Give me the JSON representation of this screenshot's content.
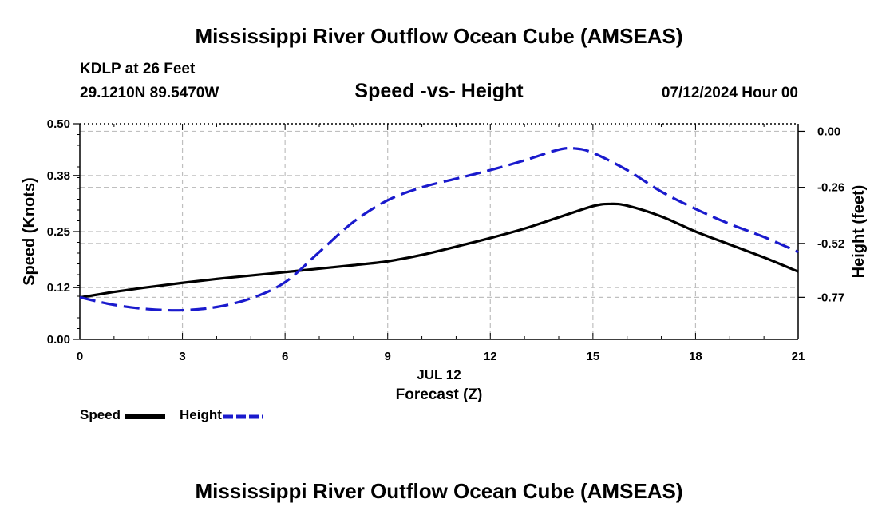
{
  "header": {
    "title": "Mississippi River Outflow Ocean Cube (AMSEAS)",
    "station": "KDLP at 26 Feet",
    "location": "29.1210N  89.5470W",
    "subtitle": "Speed -vs- Height",
    "datetime": "07/12/2024 Hour 00"
  },
  "footer": {
    "title": "Mississippi River Outflow Ocean Cube (AMSEAS)"
  },
  "legend": {
    "speed_label": "Speed",
    "height_label": "Height"
  },
  "colors": {
    "speed": "#000000",
    "height": "#1a1acd",
    "grid": "#bfbfbf"
  },
  "chart_data": {
    "type": "line",
    "xlabel": "Forecast (Z)",
    "date_label": "JUL 12",
    "x_ticks": [
      0,
      3,
      6,
      9,
      12,
      15,
      18,
      21
    ],
    "xlim": [
      0,
      21
    ],
    "left_axis": {
      "label": "Speed (Knots)",
      "ylim": [
        0.0,
        0.5
      ],
      "ticks": [
        0.0,
        0.12,
        0.25,
        0.38,
        0.5
      ],
      "tick_labels": [
        "0.00",
        "0.12",
        "0.25",
        "0.38",
        "0.50"
      ]
    },
    "right_axis": {
      "label": "Height (feet)",
      "ylim": [
        -0.965,
        0.035
      ],
      "ticks": [
        0.0,
        -0.26,
        -0.52,
        -0.77
      ],
      "tick_labels": [
        "0.00",
        "-0.26",
        "-0.52",
        "-0.77"
      ]
    },
    "series": [
      {
        "name": "Speed",
        "axis": "left",
        "style": "solid",
        "x": [
          0,
          1,
          2,
          3,
          4,
          5,
          6,
          7,
          8,
          9,
          10,
          11,
          12,
          13,
          14,
          15,
          15.5,
          16,
          17,
          18,
          19,
          20,
          21
        ],
        "values": [
          0.097,
          0.11,
          0.121,
          0.131,
          0.14,
          0.148,
          0.156,
          0.164,
          0.172,
          0.181,
          0.196,
          0.215,
          0.235,
          0.257,
          0.283,
          0.309,
          0.314,
          0.31,
          0.285,
          0.25,
          0.22,
          0.19,
          0.157
        ]
      },
      {
        "name": "Height",
        "axis": "right",
        "style": "dashed",
        "x": [
          0,
          1,
          2,
          3,
          4,
          5,
          6,
          7,
          8,
          9,
          10,
          11,
          12,
          13,
          14,
          14.5,
          15,
          16,
          17,
          18,
          19,
          20,
          21
        ],
        "values": [
          -0.77,
          -0.805,
          -0.825,
          -0.83,
          -0.815,
          -0.775,
          -0.7,
          -0.56,
          -0.42,
          -0.32,
          -0.26,
          -0.22,
          -0.18,
          -0.135,
          -0.085,
          -0.08,
          -0.1,
          -0.18,
          -0.28,
          -0.36,
          -0.43,
          -0.49,
          -0.56
        ]
      }
    ]
  }
}
